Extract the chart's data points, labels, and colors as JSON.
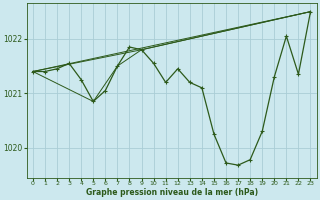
{
  "background_color": "#cce8ee",
  "plot_bg_color": "#cce8ee",
  "line_color": "#2d5a1b",
  "grid_color": "#aacdd6",
  "xlabel": "Graphe pression niveau de la mer (hPa)",
  "xlim": [
    -0.5,
    23.5
  ],
  "ylim": [
    1019.45,
    1022.65
  ],
  "yticks": [
    1020,
    1021,
    1022
  ],
  "xticks": [
    0,
    1,
    2,
    3,
    4,
    5,
    6,
    7,
    8,
    9,
    10,
    11,
    12,
    13,
    14,
    15,
    16,
    17,
    18,
    19,
    20,
    21,
    22,
    23
  ],
  "main_series": {
    "x": [
      0,
      1,
      2,
      3,
      4,
      5,
      6,
      7,
      8,
      9,
      10,
      11,
      12,
      13,
      14,
      15,
      16,
      17,
      18,
      19,
      20,
      21,
      22,
      23
    ],
    "y": [
      1021.4,
      1021.4,
      1021.45,
      1021.55,
      1021.25,
      1020.85,
      1021.05,
      1021.5,
      1021.85,
      1021.8,
      1021.55,
      1021.2,
      1021.45,
      1021.2,
      1021.1,
      1020.25,
      1019.72,
      1019.68,
      1019.78,
      1020.3,
      1021.3,
      1022.05,
      1021.35,
      1022.5
    ]
  },
  "trend_lines": [
    {
      "x": [
        0,
        23
      ],
      "y": [
        1021.4,
        1022.5
      ]
    },
    {
      "x": [
        0,
        9,
        23
      ],
      "y": [
        1021.4,
        1021.8,
        1022.5
      ]
    },
    {
      "x": [
        0,
        5,
        7,
        9,
        23
      ],
      "y": [
        1021.4,
        1020.85,
        1021.5,
        1021.8,
        1022.5
      ]
    }
  ]
}
